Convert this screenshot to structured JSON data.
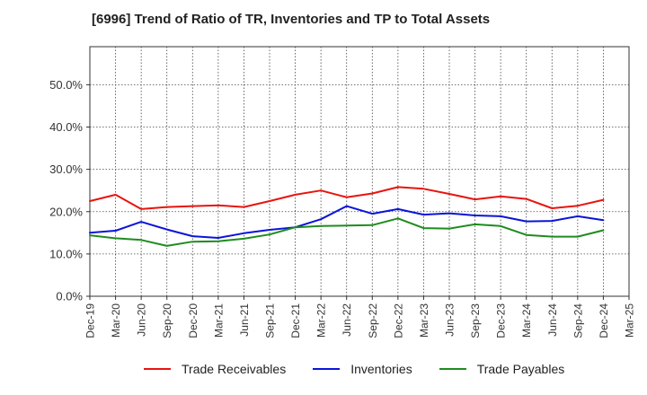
{
  "title": "[6996]  Trend of Ratio of TR, Inventories and TP to Total Assets",
  "chart_data": {
    "type": "line",
    "x": [
      "Dec-19",
      "Mar-20",
      "Jun-20",
      "Sep-20",
      "Dec-20",
      "Mar-21",
      "Jun-21",
      "Sep-21",
      "Dec-21",
      "Mar-22",
      "Jun-22",
      "Sep-22",
      "Dec-22",
      "Mar-23",
      "Jun-23",
      "Sep-23",
      "Dec-23",
      "Mar-24",
      "Jun-24",
      "Sep-24",
      "Dec-24",
      "Mar-25"
    ],
    "ylim": [
      0,
      0.59
    ],
    "yticks": [
      0.0,
      0.1,
      0.2,
      0.3,
      0.4,
      0.5
    ],
    "ytick_labels": [
      "0.0%",
      "10.0%",
      "20.0%",
      "30.0%",
      "40.0%",
      "50.0%"
    ],
    "grid": true,
    "legend_position": "bottom",
    "series": [
      {
        "name": "Trade Receivables",
        "color": "#e8140e",
        "values": [
          0.225,
          0.24,
          0.206,
          0.211,
          0.213,
          0.215,
          0.211,
          0.225,
          0.24,
          0.25,
          0.234,
          0.243,
          0.258,
          0.254,
          0.242,
          0.229,
          0.236,
          0.23,
          0.208,
          0.214,
          0.228,
          null
        ]
      },
      {
        "name": "Inventories",
        "color": "#0a14d8",
        "values": [
          0.15,
          0.155,
          0.176,
          0.158,
          0.142,
          0.138,
          0.149,
          0.157,
          0.163,
          0.182,
          0.213,
          0.195,
          0.206,
          0.193,
          0.196,
          0.191,
          0.189,
          0.177,
          0.178,
          0.189,
          0.18,
          null
        ]
      },
      {
        "name": "Trade Payables",
        "color": "#1e8c1e",
        "values": [
          0.144,
          0.137,
          0.133,
          0.119,
          0.129,
          0.13,
          0.136,
          0.146,
          0.163,
          0.166,
          0.167,
          0.168,
          0.184,
          0.161,
          0.16,
          0.17,
          0.166,
          0.145,
          0.141,
          0.141,
          0.156,
          null
        ]
      }
    ]
  }
}
